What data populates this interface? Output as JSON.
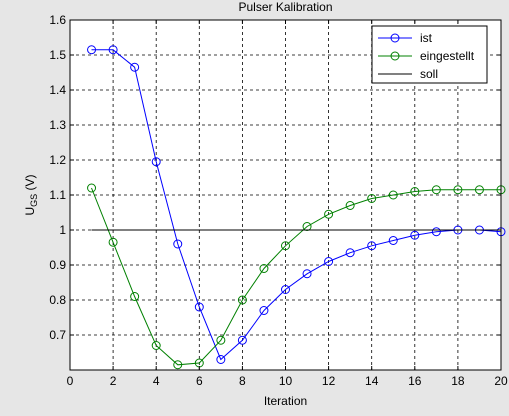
{
  "chart_data": {
    "type": "line",
    "title": "Pulser Kalibration",
    "xlabel": "Iteration",
    "ylabel": {
      "main": "U",
      "sub": "GS",
      "unit": " (V)"
    },
    "xlim": [
      0,
      20
    ],
    "ylim": [
      0.6,
      1.6
    ],
    "xticks": [
      0,
      2,
      4,
      6,
      8,
      10,
      12,
      14,
      16,
      18,
      20
    ],
    "yticks": [
      0.7,
      0.8,
      0.9,
      1,
      1.1,
      1.2,
      1.3,
      1.4,
      1.5,
      1.6
    ],
    "grid": true,
    "legend_position": "top-right",
    "series": [
      {
        "name": "ist",
        "color": "#0000ff",
        "marker": "circle",
        "x": [
          1,
          2,
          3,
          4,
          5,
          6,
          7,
          8,
          9,
          10,
          11,
          12,
          13,
          14,
          15,
          16,
          17,
          18,
          19,
          20
        ],
        "values": [
          1.515,
          1.515,
          1.465,
          1.195,
          0.96,
          0.78,
          0.63,
          0.685,
          0.77,
          0.83,
          0.875,
          0.91,
          0.935,
          0.955,
          0.97,
          0.985,
          0.995,
          1.0,
          1.0,
          0.995
        ]
      },
      {
        "name": "eingestellt",
        "color": "#008000",
        "marker": "circle",
        "x": [
          1,
          2,
          3,
          4,
          5,
          6,
          7,
          8,
          9,
          10,
          11,
          12,
          13,
          14,
          15,
          16,
          17,
          18,
          19,
          20
        ],
        "values": [
          1.12,
          0.965,
          0.81,
          0.67,
          0.615,
          0.62,
          0.685,
          0.8,
          0.89,
          0.955,
          1.01,
          1.045,
          1.07,
          1.09,
          1.1,
          1.11,
          1.115,
          1.115,
          1.115,
          1.115
        ]
      },
      {
        "name": "soll",
        "color": "#000000",
        "marker": "none",
        "x": [
          1,
          20
        ],
        "values": [
          1,
          1
        ]
      }
    ]
  }
}
